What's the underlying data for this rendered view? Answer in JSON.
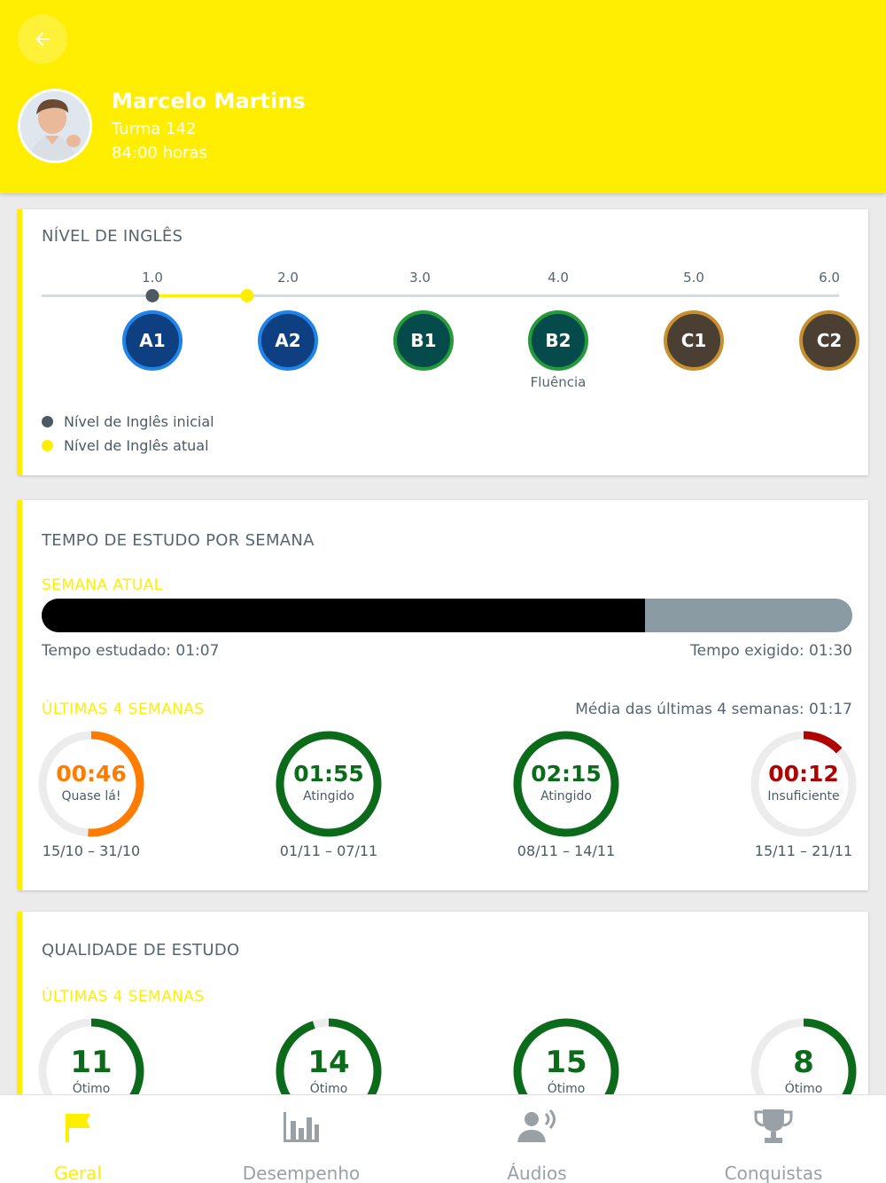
{
  "colors": {
    "brand_yellow": "#ffee00",
    "text_gray": "#4b5a63",
    "orange": "#ff7c00",
    "green": "#0b6b1a",
    "red": "#b00000",
    "ring_track": "#ececec",
    "level_a": "#0e3f80",
    "level_b": "#064b4b",
    "level_c": "#4b3f33"
  },
  "header": {
    "back_icon": "arrow-left-icon",
    "student_name": "Marcelo Martins",
    "class_name": "Turma 142",
    "hours": "84:00 horas"
  },
  "level": {
    "title": "NÍVEL DE INGLÊS",
    "scale": [
      "1.0",
      "2.0",
      "3.0",
      "4.0",
      "5.0",
      "6.0"
    ],
    "badges": [
      "A1",
      "A2",
      "B1",
      "B2",
      "C1",
      "C2"
    ],
    "fluency_label": "Fluência",
    "initial_level": 1.0,
    "current_level": 1.7,
    "legend_initial": "Nível de Inglês inicial",
    "legend_current": "Nível de Inglês atual"
  },
  "study_time": {
    "title": "TEMPO DE ESTUDO POR SEMANA",
    "current_week_label": "SEMANA ATUAL",
    "progress_fraction": 0.7444,
    "studied": "Tempo estudado: 01:07",
    "required": "Tempo exigido: 01:30",
    "last_weeks_label": "ÚLTIMAS 4 SEMANAS",
    "average": "Média das últimas 4 semanas: 01:17",
    "weeks": [
      {
        "value": "00:46",
        "status": "Quase lá!",
        "dates": "15/10 – 31/10",
        "fraction": 0.51,
        "color": "#ff7c00"
      },
      {
        "value": "01:55",
        "status": "Atingido",
        "dates": "01/11 – 07/11",
        "fraction": 1.0,
        "color": "#0b6b1a"
      },
      {
        "value": "02:15",
        "status": "Atingido",
        "dates": "08/11 – 14/11",
        "fraction": 1.0,
        "color": "#0b6b1a"
      },
      {
        "value": "00:12",
        "status": "Insuficiente",
        "dates": "15/11 – 21/11",
        "fraction": 0.13,
        "color": "#b00000"
      }
    ]
  },
  "quality": {
    "title": "QUALIDADE DE ESTUDO",
    "last_weeks_label": "ÚLTIMAS 4 SEMANAS",
    "weeks": [
      {
        "value": "11",
        "status": "Ótimo",
        "fraction": 0.55,
        "color": "#0b6b1a"
      },
      {
        "value": "14",
        "status": "Ótimo",
        "fraction": 0.95,
        "color": "#0b6b1a"
      },
      {
        "value": "15",
        "status": "Ótimo",
        "fraction": 1.0,
        "color": "#0b6b1a"
      },
      {
        "value": "8",
        "status": "Ótimo",
        "fraction": 0.5,
        "color": "#0b6b1a"
      }
    ]
  },
  "nav": {
    "items": [
      {
        "label": "Geral",
        "icon": "flag-icon",
        "active": true
      },
      {
        "label": "Desempenho",
        "icon": "bar-chart-icon",
        "active": false
      },
      {
        "label": "Áudios",
        "icon": "speaking-person-icon",
        "active": false
      },
      {
        "label": "Conquistas",
        "icon": "trophy-icon",
        "active": false
      }
    ]
  }
}
